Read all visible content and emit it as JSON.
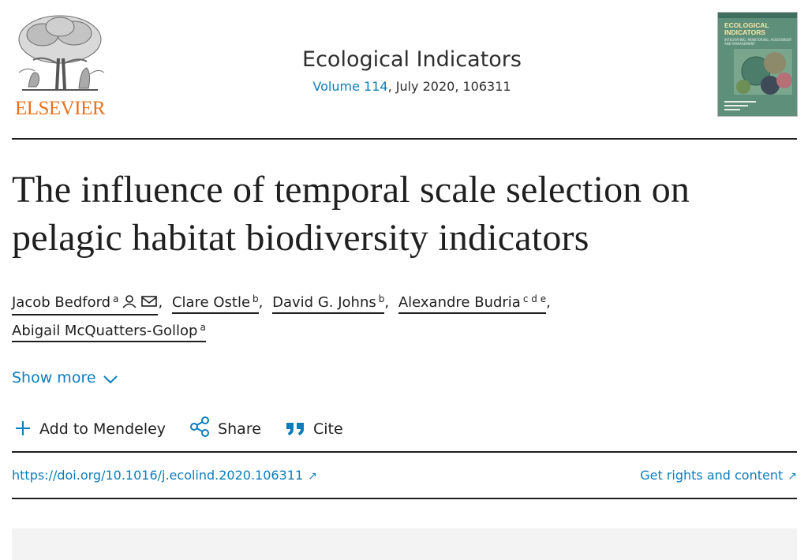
{
  "publisher": {
    "name": "ELSEVIER",
    "logo_icon": "elsevier-tree-logo"
  },
  "journal": {
    "title": "Ecological Indicators",
    "volume_link": "Volume 114",
    "issue_info": ", July 2020, 106311",
    "cover": {
      "title_line1": "ECOLOGICAL",
      "title_line2": "INDICATORS",
      "subtitle": "INTEGRATING, MONITORING, ASSESSMENT AND MANAGEMENT"
    }
  },
  "article": {
    "title": "The influence of temporal scale selection on pelagic habitat biodiversity indicators"
  },
  "authors": [
    {
      "name": "Jacob Bedford",
      "affil": "a",
      "icons": [
        "person-icon",
        "envelope-icon"
      ]
    },
    {
      "name": "Clare Ostle",
      "affil": "b"
    },
    {
      "name": "David G. Johns",
      "affil": "b"
    },
    {
      "name": "Alexandre Budria",
      "affil": "c d e"
    },
    {
      "name": "Abigail McQuatters-Gollop",
      "affil": "a"
    }
  ],
  "show_more_label": "Show more",
  "actions": {
    "add_to_mendeley": "Add to Mendeley",
    "share": "Share",
    "cite": "Cite"
  },
  "links": {
    "doi": "https://doi.org/10.1016/j.ecolind.2020.106311",
    "rights": "Get rights and content",
    "arrow": "↗"
  },
  "colors": {
    "link": "#0c7dbb",
    "elsevier_orange": "#e9711c",
    "text": "#1f1f1f"
  }
}
